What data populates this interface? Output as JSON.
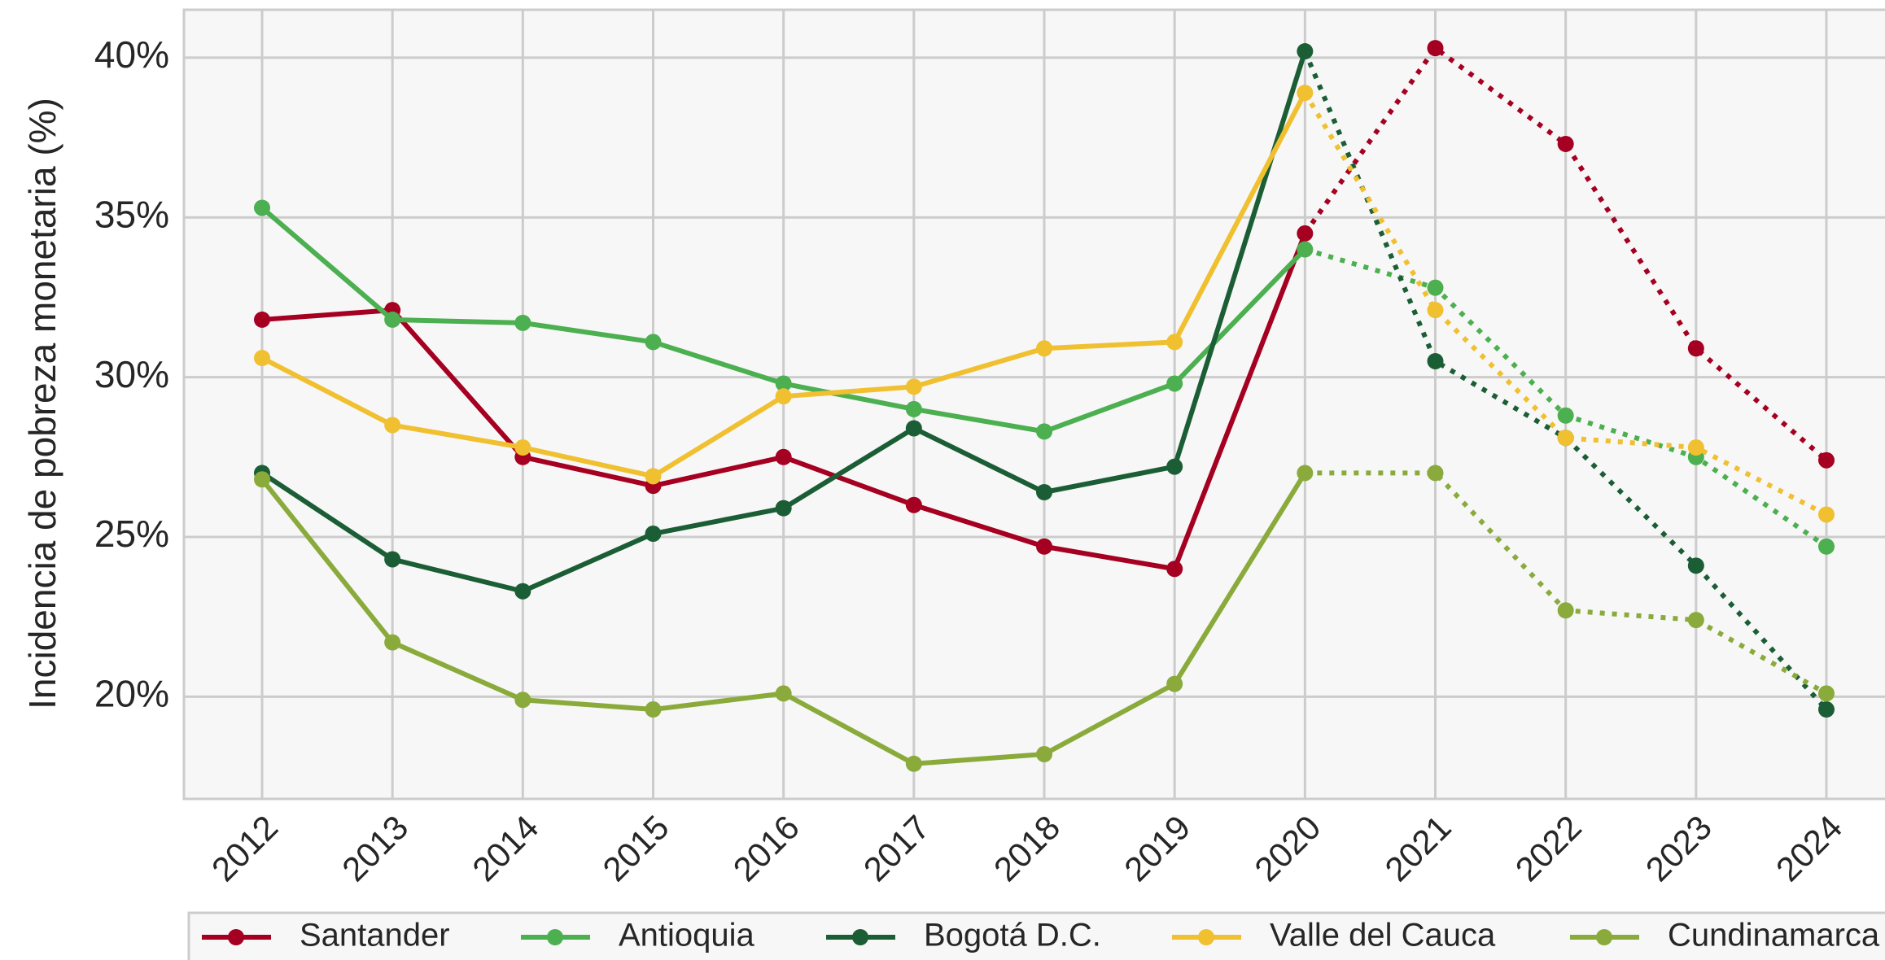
{
  "chart_data": {
    "type": "line",
    "y_label": "Incidencia de pobreza monetaria (%)",
    "categories": [
      "2012",
      "2013",
      "2014",
      "2015",
      "2016",
      "2017",
      "2018",
      "2019",
      "2020",
      "2021",
      "2022",
      "2023",
      "2024"
    ],
    "dotted_after": "2020",
    "series": [
      {
        "name": "Santander",
        "color": "#a50021",
        "values": [
          31.8,
          32.1,
          27.5,
          26.6,
          27.5,
          26.0,
          24.7,
          24.0,
          34.5,
          40.3,
          37.3,
          30.9,
          27.4
        ]
      },
      {
        "name": "Antioquia",
        "color": "#4caf50",
        "values": [
          35.3,
          31.8,
          31.7,
          31.1,
          29.8,
          29.0,
          28.3,
          29.8,
          34.0,
          32.8,
          28.8,
          27.5,
          24.7
        ]
      },
      {
        "name": "Bogotá D.C.",
        "color": "#1b5e35",
        "values": [
          27.0,
          24.3,
          23.3,
          25.1,
          25.9,
          28.4,
          26.4,
          27.2,
          40.2,
          30.5,
          28.1,
          24.1,
          19.6
        ]
      },
      {
        "name": "Valle del Cauca",
        "color": "#f0c030",
        "values": [
          30.6,
          28.5,
          27.8,
          26.9,
          29.4,
          29.7,
          30.9,
          31.1,
          38.9,
          32.1,
          28.1,
          27.8,
          25.7
        ]
      },
      {
        "name": "Cundinamarca",
        "color": "#8aab3c",
        "values": [
          26.8,
          21.7,
          19.9,
          19.6,
          20.1,
          17.9,
          18.2,
          20.4,
          27.0,
          27.0,
          22.7,
          22.4,
          20.1
        ]
      }
    ],
    "ylim": [
      16.8,
      41.5
    ],
    "yticks": [
      {
        "value": 20,
        "label": "20%"
      },
      {
        "value": 25,
        "label": "25%"
      },
      {
        "value": 30,
        "label": "30%"
      },
      {
        "value": 35,
        "label": "35%"
      },
      {
        "value": 40,
        "label": "40%"
      }
    ],
    "grid": true,
    "legend": "bottom"
  }
}
